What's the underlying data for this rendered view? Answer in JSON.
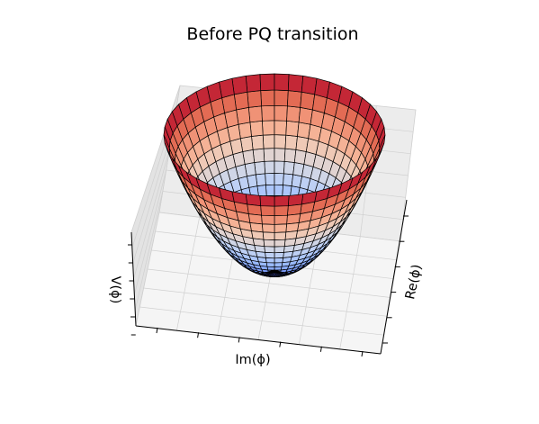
{
  "chart_data": {
    "type": "surface3d",
    "title": "Before PQ transition",
    "xlabel": "Re(ϕ)",
    "ylabel": "Im(ϕ)",
    "zlabel": "V(ϕ)",
    "colormap": "coolwarm",
    "grid": true,
    "surface": {
      "function": "paraboloid",
      "radial_lines": 48,
      "rings": 20,
      "z_min": 0,
      "z_max": 1
    }
  },
  "colors": {
    "pane": "#f2f2f2",
    "pane_dark": "#e6e6e6",
    "grid": "#d0d0d0",
    "edge": "#000000",
    "coolwarm": [
      "#3b4cc0",
      "#6a8bef",
      "#9ebeff",
      "#c9d7f0",
      "#edd1c2",
      "#f7a889",
      "#e36a53",
      "#b40426"
    ]
  }
}
